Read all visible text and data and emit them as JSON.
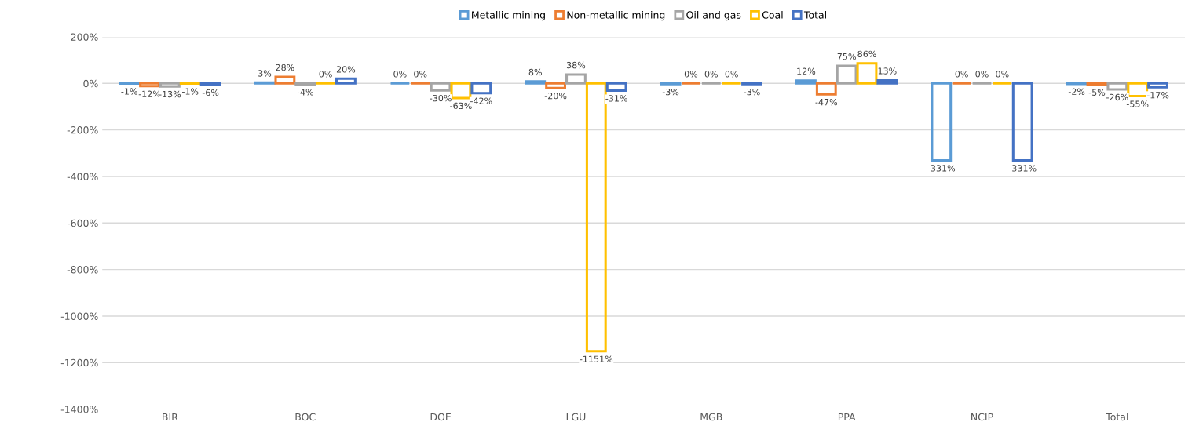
{
  "chart_data": {
    "type": "bar",
    "categories": [
      "BIR",
      "BOC",
      "DOE",
      "LGU",
      "MGB",
      "PPA",
      "NCIP",
      "Total"
    ],
    "series": [
      {
        "name": "Metallic mining",
        "color": "#5b9bd5",
        "values": [
          -1,
          3,
          0,
          8,
          -3,
          12,
          -331,
          -2
        ],
        "value_labels": [
          "-1%",
          "3%",
          "0%",
          "8%",
          "-3%",
          "12%",
          "-331%",
          "-2%"
        ]
      },
      {
        "name": "Non-metallic mining",
        "color": "#ed7d31",
        "values": [
          -12,
          28,
          0,
          -20,
          0,
          -47,
          0,
          -5
        ],
        "value_labels": [
          "-12%",
          "28%",
          "0%",
          "-20%",
          "0%",
          "-47%",
          "0%",
          "-5%"
        ]
      },
      {
        "name": "Oil and gas",
        "color": "#a5a5a5",
        "values": [
          -13,
          -4,
          -30,
          38,
          0,
          75,
          0,
          -26
        ],
        "value_labels": [
          "-13%",
          "-4%",
          "-30%",
          "38%",
          "0%",
          "75%",
          "0%",
          "-26%"
        ]
      },
      {
        "name": "Coal",
        "color": "#ffc000",
        "values": [
          -1,
          0,
          -63,
          -1151,
          0,
          86,
          0,
          -55
        ],
        "value_labels": [
          "-1%",
          "0%",
          "-63%",
          "-1151%",
          "0%",
          "86%",
          "0%",
          "-55%"
        ]
      },
      {
        "name": "Total",
        "color": "#4472c4",
        "values": [
          -6,
          20,
          -42,
          -31,
          -3,
          13,
          -331,
          -17
        ],
        "value_labels": [
          "-6%",
          "20%",
          "-42%",
          "-31%",
          "-3%",
          "13%",
          "-331%",
          "-17%"
        ]
      }
    ],
    "ylim": [
      -1400,
      200
    ],
    "yticks": [
      {
        "value": -1400,
        "label": "-1400%"
      },
      {
        "value": -1200,
        "label": "-1200%"
      },
      {
        "value": -1000,
        "label": "-1000%"
      },
      {
        "value": -800,
        "label": "-800%"
      },
      {
        "value": -600,
        "label": "-600%"
      },
      {
        "value": -400,
        "label": "-400%"
      },
      {
        "value": -200,
        "label": "-200%"
      },
      {
        "value": 0,
        "label": "0%"
      },
      {
        "value": 200,
        "label": "200%"
      }
    ],
    "grid": "y",
    "legend": "top"
  }
}
